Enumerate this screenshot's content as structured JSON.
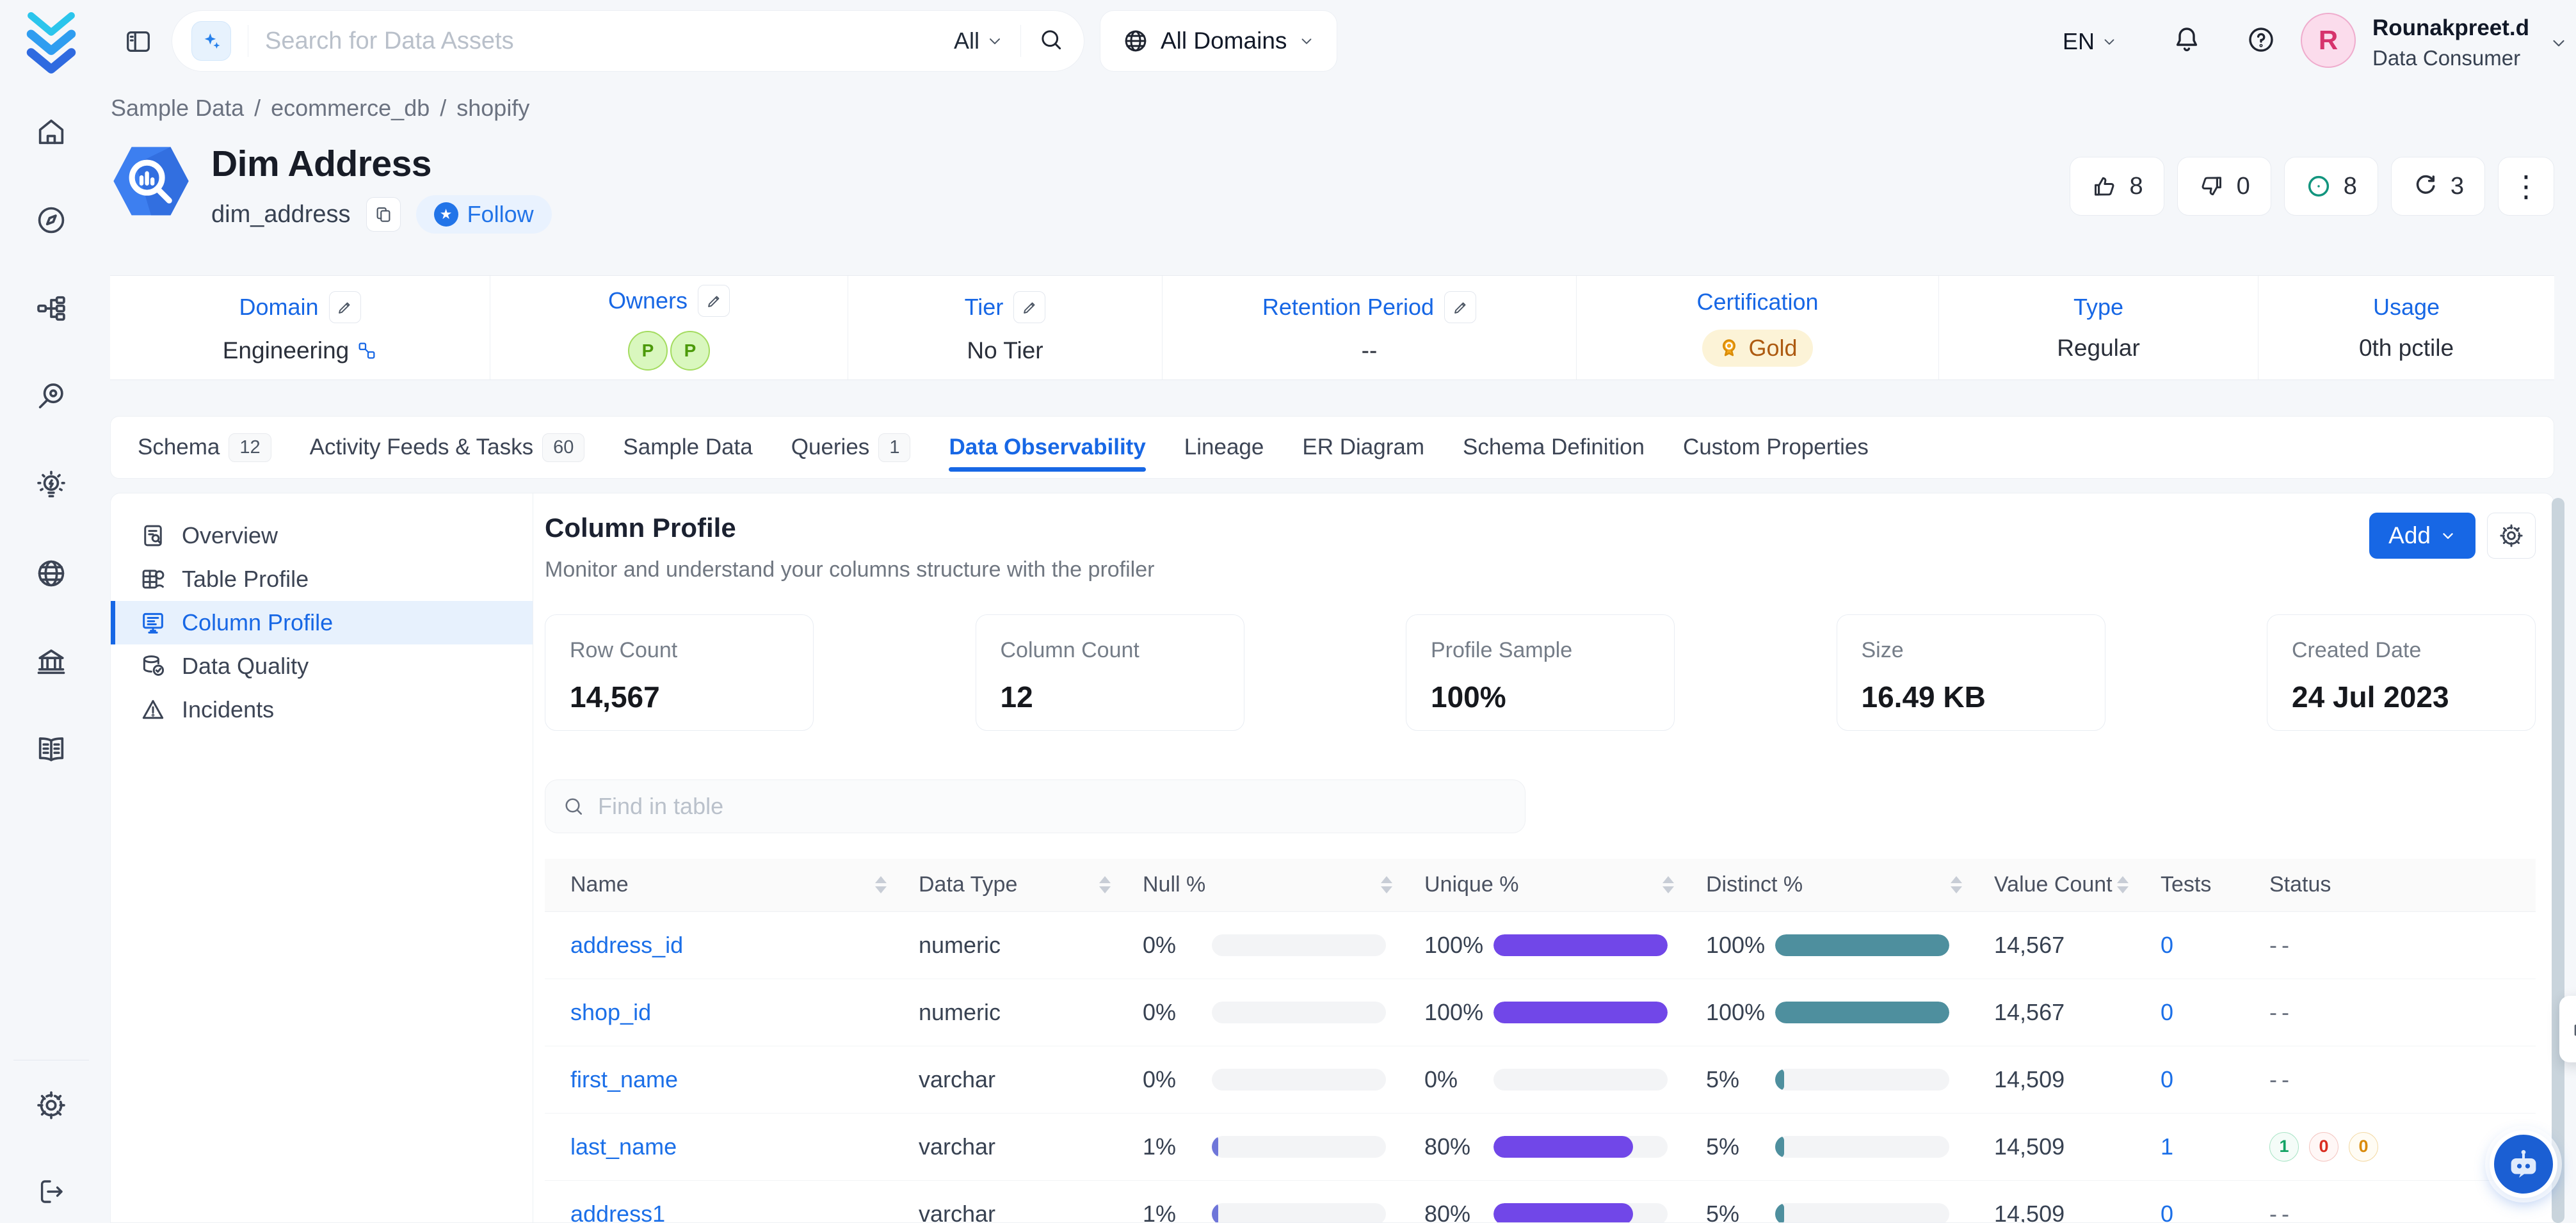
{
  "topbar": {
    "search": {
      "placeholder": "Search for Data Assets",
      "scope": "All"
    },
    "domain_filter": "All Domains",
    "language": "EN",
    "user": {
      "initial": "R",
      "name": "Rounakpreet.d",
      "role": "Data Consumer"
    }
  },
  "breadcrumb": {
    "items": [
      "Sample Data",
      "ecommerce_db",
      "shopify"
    ],
    "separator": "/"
  },
  "entity": {
    "title": "Dim Address",
    "name": "dim_address",
    "follow_label": "Follow",
    "stats": [
      {
        "icon": "thumbs-up-icon",
        "value": "8"
      },
      {
        "icon": "thumbs-down-icon",
        "value": "0"
      },
      {
        "icon": "views-icon",
        "value": "8"
      },
      {
        "icon": "versions-icon",
        "value": "3"
      }
    ]
  },
  "meta": [
    {
      "label": "Domain",
      "editable": true,
      "value": "Engineering",
      "value_icon": "domain-link-icon"
    },
    {
      "label": "Owners",
      "editable": true,
      "avatars": [
        "P",
        "P"
      ]
    },
    {
      "label": "Tier",
      "editable": true,
      "value": "No Tier"
    },
    {
      "label": "Retention Period",
      "editable": true,
      "value": "--"
    },
    {
      "label": "Certification",
      "editable": false,
      "badge": "Gold"
    },
    {
      "label": "Type",
      "editable": false,
      "value": "Regular"
    },
    {
      "label": "Usage",
      "editable": false,
      "value": "0th pctile"
    }
  ],
  "tabs": [
    {
      "label": "Schema",
      "count": "12",
      "active": false
    },
    {
      "label": "Activity Feeds & Tasks",
      "count": "60",
      "active": false
    },
    {
      "label": "Sample Data",
      "active": false
    },
    {
      "label": "Queries",
      "count": "1",
      "active": false
    },
    {
      "label": "Data Observability",
      "active": true
    },
    {
      "label": "Lineage",
      "active": false
    },
    {
      "label": "ER Diagram",
      "active": false
    },
    {
      "label": "Schema Definition",
      "active": false
    },
    {
      "label": "Custom Properties",
      "active": false
    }
  ],
  "observability_menu": [
    {
      "label": "Overview",
      "icon": "overview-icon",
      "active": false
    },
    {
      "label": "Table Profile",
      "icon": "table-profile-icon",
      "active": false
    },
    {
      "label": "Column Profile",
      "icon": "column-profile-icon",
      "active": true
    },
    {
      "label": "Data Quality",
      "icon": "data-quality-icon",
      "active": false
    },
    {
      "label": "Incidents",
      "icon": "incidents-icon",
      "active": false
    }
  ],
  "column_profile": {
    "title": "Column Profile",
    "subtitle": "Monitor and understand your columns structure with the profiler",
    "add_label": "Add",
    "summary_cards": [
      {
        "label": "Row Count",
        "value": "14,567"
      },
      {
        "label": "Column Count",
        "value": "12"
      },
      {
        "label": "Profile Sample",
        "value": "100%"
      },
      {
        "label": "Size",
        "value": "16.49 KB"
      },
      {
        "label": "Created Date",
        "value": "24 Jul 2023"
      }
    ],
    "find_placeholder": "Find in table"
  },
  "table": {
    "columns": [
      {
        "label": "Name",
        "sortable": true
      },
      {
        "label": "Data Type",
        "sortable": true
      },
      {
        "label": "Null %",
        "sortable": true
      },
      {
        "label": "Unique %",
        "sortable": true
      },
      {
        "label": "Distinct %",
        "sortable": true
      },
      {
        "label": "Value Count",
        "sortable": true
      },
      {
        "label": "Tests",
        "sortable": false
      },
      {
        "label": "Status",
        "sortable": false
      }
    ],
    "rows": [
      {
        "name": "address_id",
        "data_type": "numeric",
        "null_pct": 0,
        "unique_pct": 100,
        "distinct_pct": 100,
        "value_count": "14,567",
        "tests": "0",
        "status": "--"
      },
      {
        "name": "shop_id",
        "data_type": "numeric",
        "null_pct": 0,
        "unique_pct": 100,
        "distinct_pct": 100,
        "value_count": "14,567",
        "tests": "0",
        "status": "--"
      },
      {
        "name": "first_name",
        "data_type": "varchar",
        "null_pct": 0,
        "unique_pct": 0,
        "distinct_pct": 5,
        "value_count": "14,509",
        "tests": "0",
        "status": "--"
      },
      {
        "name": "last_name",
        "data_type": "varchar",
        "null_pct": 1,
        "unique_pct": 80,
        "distinct_pct": 5,
        "value_count": "14,509",
        "tests": "1",
        "status_badges": [
          {
            "value": "1",
            "type": "success"
          },
          {
            "value": "0",
            "type": "failed"
          },
          {
            "value": "0",
            "type": "aborted"
          }
        ]
      },
      {
        "name": "address1",
        "data_type": "varchar",
        "null_pct": 1,
        "unique_pct": 80,
        "distinct_pct": 5,
        "value_count": "14,509",
        "tests": "0",
        "status": "--"
      }
    ]
  },
  "rail_icons": [
    "home-icon",
    "explore-icon",
    "lineage-icon",
    "observability-icon",
    "insights-icon",
    "domains-icon",
    "govern-icon",
    "glossary-icon"
  ],
  "rail_bottom_icons": [
    "settings-icon",
    "logout-icon"
  ],
  "colors": {
    "accent": "#1767e5",
    "unique_bar": "#7147e8",
    "distinct_bar": "#4e8f9e",
    "null_bar": "#6f76d9"
  }
}
